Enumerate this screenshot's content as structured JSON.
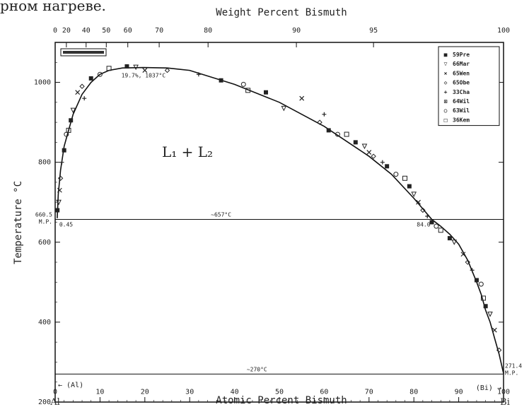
{
  "top_caption": "рном нагреве.",
  "chart_data": {
    "type": "scatter",
    "x_axis_bottom": {
      "label": "Atomic Percent Bismuth",
      "range": [
        0,
        100
      ],
      "ticks": [
        0,
        10,
        20,
        30,
        40,
        50,
        60,
        70,
        80,
        90,
        100
      ],
      "end_labels": [
        "Al",
        "Bi"
      ]
    },
    "x_axis_top": {
      "label": "Weight Percent Bismuth",
      "ticks": [
        {
          "label": "0",
          "at_atomic": 0
        },
        {
          "label": "20",
          "at_atomic": 2.5
        },
        {
          "label": "40",
          "at_atomic": 6.9
        },
        {
          "label": "50",
          "at_atomic": 11.4
        },
        {
          "label": "60",
          "at_atomic": 16.2
        },
        {
          "label": "70",
          "at_atomic": 23.2
        },
        {
          "label": "80",
          "at_atomic": 34.1
        },
        {
          "label": "90",
          "at_atomic": 53.8
        },
        {
          "label": "95",
          "at_atomic": 71.0
        },
        {
          "label": "100",
          "at_atomic": 100
        }
      ]
    },
    "y_axis": {
      "label": "Temperature °C",
      "range": [
        200,
        1100
      ],
      "ticks": [
        200,
        400,
        600,
        800,
        1000
      ]
    },
    "grid": false,
    "legend_position": "top-right",
    "legend": [
      {
        "symbol": "■",
        "label": "59Pre"
      },
      {
        "symbol": "▽",
        "label": "66Mar"
      },
      {
        "symbol": "×",
        "label": "65Wen"
      },
      {
        "symbol": "◇",
        "label": "65Obe"
      },
      {
        "symbol": "+",
        "label": "33Cha"
      },
      {
        "symbol": "⊠",
        "label": "64Wil"
      },
      {
        "symbol": "○",
        "label": "63Wil"
      },
      {
        "symbol": "□",
        "label": "36Kem"
      }
    ],
    "liquidus_curve": {
      "x": [
        0.45,
        0.7,
        1.2,
        2,
        3,
        4,
        6,
        8,
        10,
        12,
        15,
        19.7,
        25,
        30,
        40,
        50,
        60,
        70,
        75,
        80,
        84,
        86,
        88,
        90,
        92,
        94,
        95,
        96,
        97,
        98,
        99,
        100
      ],
      "y": [
        660,
        720,
        780,
        840,
        880,
        920,
        970,
        1000,
        1020,
        1030,
        1036,
        1037,
        1036,
        1030,
        995,
        950,
        890,
        815,
        770,
        710,
        657,
        640,
        620,
        595,
        555,
        500,
        470,
        430,
        400,
        360,
        320,
        271.4
      ]
    },
    "points": [
      {
        "x": 0.5,
        "y": 680
      },
      {
        "x": 0.8,
        "y": 700
      },
      {
        "x": 1,
        "y": 730
      },
      {
        "x": 1.2,
        "y": 760
      },
      {
        "x": 1.5,
        "y": 800
      },
      {
        "x": 2,
        "y": 830
      },
      {
        "x": 2.5,
        "y": 870
      },
      {
        "x": 3,
        "y": 880
      },
      {
        "x": 3.5,
        "y": 905
      },
      {
        "x": 4,
        "y": 930
      },
      {
        "x": 5,
        "y": 975
      },
      {
        "x": 6,
        "y": 990
      },
      {
        "x": 6.5,
        "y": 960
      },
      {
        "x": 8,
        "y": 1010
      },
      {
        "x": 10,
        "y": 1020
      },
      {
        "x": 12,
        "y": 1035
      },
      {
        "x": 16,
        "y": 1040
      },
      {
        "x": 18,
        "y": 1038
      },
      {
        "x": 20,
        "y": 1030
      },
      {
        "x": 25,
        "y": 1030
      },
      {
        "x": 32,
        "y": 1020
      },
      {
        "x": 37,
        "y": 1005
      },
      {
        "x": 42,
        "y": 995
      },
      {
        "x": 43,
        "y": 980
      },
      {
        "x": 47,
        "y": 975
      },
      {
        "x": 51,
        "y": 935
      },
      {
        "x": 55,
        "y": 960
      },
      {
        "x": 59,
        "y": 900
      },
      {
        "x": 60,
        "y": 920
      },
      {
        "x": 61,
        "y": 880
      },
      {
        "x": 63,
        "y": 870
      },
      {
        "x": 65,
        "y": 870
      },
      {
        "x": 67,
        "y": 850
      },
      {
        "x": 69,
        "y": 840
      },
      {
        "x": 70,
        "y": 825
      },
      {
        "x": 71,
        "y": 815
      },
      {
        "x": 73,
        "y": 800
      },
      {
        "x": 74,
        "y": 790
      },
      {
        "x": 76,
        "y": 770
      },
      {
        "x": 78,
        "y": 760
      },
      {
        "x": 79,
        "y": 740
      },
      {
        "x": 80,
        "y": 720
      },
      {
        "x": 81,
        "y": 700
      },
      {
        "x": 82,
        "y": 680
      },
      {
        "x": 83,
        "y": 665
      },
      {
        "x": 84,
        "y": 650
      },
      {
        "x": 85,
        "y": 640
      },
      {
        "x": 86,
        "y": 630
      },
      {
        "x": 88,
        "y": 610
      },
      {
        "x": 89,
        "y": 600
      },
      {
        "x": 91,
        "y": 570
      },
      {
        "x": 92,
        "y": 550
      },
      {
        "x": 93,
        "y": 530
      },
      {
        "x": 94,
        "y": 505
      },
      {
        "x": 95,
        "y": 495
      },
      {
        "x": 95.5,
        "y": 460
      },
      {
        "x": 96,
        "y": 440
      },
      {
        "x": 97,
        "y": 420
      },
      {
        "x": 98,
        "y": 380
      },
      {
        "x": 99,
        "y": 330
      }
    ],
    "monotectic": {
      "T": 657,
      "x_range": [
        0.45,
        84.0
      ],
      "label": "~657°C",
      "left_comp_label": "0.45",
      "right_comp_label": "84.0"
    },
    "eutectic": {
      "T": 270,
      "x_range": [
        0,
        100
      ],
      "label": "~270°C"
    },
    "critical_point": {
      "x": 19.7,
      "T": 1037,
      "label": "19.7%, 1037°C"
    },
    "al_mp": {
      "T": 660.5,
      "label": "660.5",
      "sub": "M.P."
    },
    "bi_mp": {
      "T": 271.4,
      "label": "271.4",
      "sub": "M.P."
    },
    "region_label": "L₁ + L₂",
    "phase_left": "← (Al)",
    "phase_right": "(Bi) →"
  }
}
